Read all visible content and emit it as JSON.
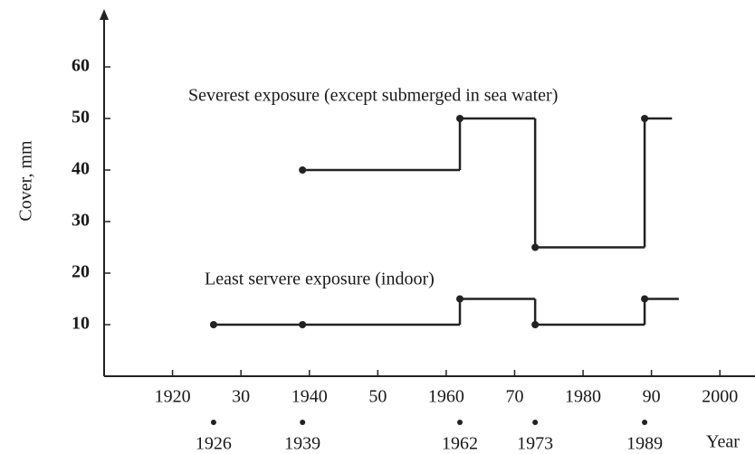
{
  "chart_data": {
    "type": "step",
    "y_label": "Cover, mm",
    "x_label": "Year",
    "xlim": [
      1910,
      2005
    ],
    "ylim": [
      0,
      70
    ],
    "xticks": [
      1920,
      {
        "value": 1930,
        "label": "30"
      },
      1940,
      {
        "value": 1950,
        "label": "50"
      },
      1960,
      {
        "value": 1970,
        "label": "70"
      },
      1980,
      {
        "value": 1990,
        "label": "90"
      },
      2000
    ],
    "yticks": [
      10,
      20,
      30,
      40,
      50,
      60
    ],
    "revision_years": [
      1926,
      1939,
      1962,
      1973,
      1989
    ],
    "series": [
      {
        "name": "Severest exposure (except submerged in sea water)",
        "color": "#222222",
        "x": [
          1939,
          1962,
          1973,
          1989,
          1993
        ],
        "values": [
          40,
          50,
          25,
          50,
          50
        ]
      },
      {
        "name": "Least servere exposure (indoor)",
        "color": "#222222",
        "x": [
          1926,
          1939,
          1962,
          1973,
          1989,
          1994
        ],
        "values": [
          10,
          10,
          15,
          10,
          15,
          15
        ]
      }
    ]
  }
}
